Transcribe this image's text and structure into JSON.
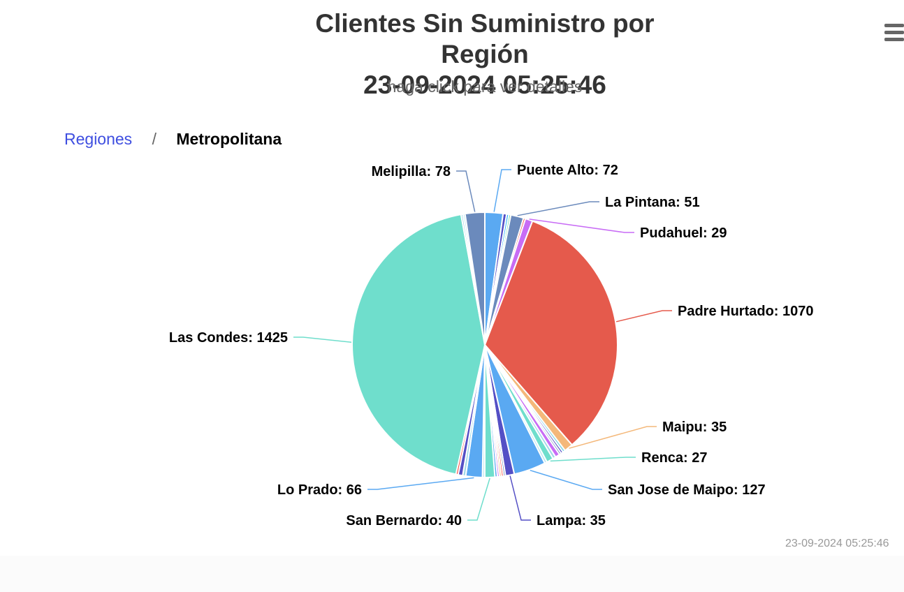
{
  "header": {
    "title_line1": "Clientes Sin Suministro por Región",
    "title_line2": "23-09-2024 05:25:46",
    "subtitle": "haga click para ver detalles"
  },
  "breadcrumb": {
    "root": "Regiones",
    "separator": "/",
    "current": "Metropolitana"
  },
  "menu": {
    "icon": "hamburger-menu-icon"
  },
  "credits": "23-09-2024 05:25:46",
  "chart_data": {
    "type": "pie",
    "title": "Clientes Sin Suministro por Región",
    "subtitle": "haga click para ver detalles",
    "slices": [
      {
        "name": "Puente Alto",
        "value": 72,
        "color": "#5aa9f2",
        "labeled": true
      },
      {
        "name": "",
        "value": 14,
        "color": "#544fc5",
        "labeled": false
      },
      {
        "name": "",
        "value": 9,
        "color": "#2caffe",
        "labeled": false
      },
      {
        "name": "",
        "value": 8,
        "color": "#6bdfa0",
        "labeled": false
      },
      {
        "name": "La Pintana",
        "value": 51,
        "color": "#6b8abc",
        "labeled": true
      },
      {
        "name": "",
        "value": 8,
        "color": "#fa4b42",
        "labeled": false
      },
      {
        "name": "Pudahuel",
        "value": 29,
        "color": "#c86cf5",
        "labeled": true
      },
      {
        "name": "Padre Hurtado",
        "value": 1070,
        "color": "#e55a4c",
        "labeled": true
      },
      {
        "name": "Maipu",
        "value": 35,
        "color": "#f4b87a",
        "labeled": true
      },
      {
        "name": "",
        "value": 10,
        "color": "#7cd6e3",
        "labeled": false
      },
      {
        "name": "",
        "value": 9,
        "color": "#544fc5",
        "labeled": false
      },
      {
        "name": "",
        "value": 8,
        "color": "#6b8abc",
        "labeled": false
      },
      {
        "name": "",
        "value": 18,
        "color": "#c86cf5",
        "labeled": false
      },
      {
        "name": "",
        "value": 12,
        "color": "#a0d8e8",
        "labeled": false
      },
      {
        "name": "Renca",
        "value": 27,
        "color": "#6fdecc",
        "labeled": true
      },
      {
        "name": "",
        "value": 10,
        "color": "#b9e6f0",
        "labeled": false
      },
      {
        "name": "San Jose de Maipo",
        "value": 127,
        "color": "#5aa9f2",
        "labeled": true
      },
      {
        "name": "Lampa",
        "value": 35,
        "color": "#544fc5",
        "labeled": true
      },
      {
        "name": "",
        "value": 8,
        "color": "#6b8abc",
        "labeled": false
      },
      {
        "name": "",
        "value": 8,
        "color": "#fa4b42",
        "labeled": false
      },
      {
        "name": "",
        "value": 8,
        "color": "#f4b87a",
        "labeled": false
      },
      {
        "name": "",
        "value": 8,
        "color": "#c86cf5",
        "labeled": false
      },
      {
        "name": "",
        "value": 10,
        "color": "#5aa9f2",
        "labeled": false
      },
      {
        "name": "San Bernardo",
        "value": 40,
        "color": "#6fdecc",
        "labeled": true
      },
      {
        "name": "",
        "value": 9,
        "color": "#b9e6f0",
        "labeled": false
      },
      {
        "name": "Lo Prado",
        "value": 66,
        "color": "#5aa9f2",
        "labeled": true
      },
      {
        "name": "",
        "value": 12,
        "color": "#a0d8e8",
        "labeled": false
      },
      {
        "name": "",
        "value": 18,
        "color": "#544fc5",
        "labeled": false
      },
      {
        "name": "",
        "value": 9,
        "color": "#fa4b42",
        "labeled": false
      },
      {
        "name": "Las Condes",
        "value": 1425,
        "color": "#6fdecc",
        "labeled": true
      },
      {
        "name": "",
        "value": 8,
        "color": "#a0d8e8",
        "labeled": false
      },
      {
        "name": "",
        "value": 8,
        "color": "#b9e6f0",
        "labeled": false
      },
      {
        "name": "Melipilla",
        "value": 78,
        "color": "#6b8abc",
        "labeled": true
      }
    ]
  }
}
